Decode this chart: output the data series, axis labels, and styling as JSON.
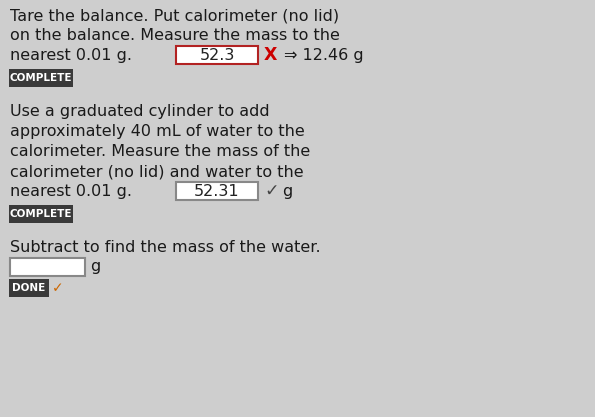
{
  "bg_color": "#cecece",
  "text_color": "#1a1a1a",
  "section1": {
    "line1": "Tare the balance. Put calorimeter (no lid)",
    "line2": "on the balance. Measure the mass to the",
    "line3_prefix": "nearest 0.01 g.",
    "box1_text": "52.3",
    "box1_border_color": "#b22222",
    "x_symbol": "X",
    "x_color": "#cc0000",
    "arrow_text": "⇒ 12.46 g",
    "badge1_text": "COMPLETE",
    "badge1_bg": "#3a3a3a",
    "badge1_fg": "#ffffff"
  },
  "section2": {
    "line1": "Use a graduated cylinder to add",
    "line2": "approximately 40 mL of water to the",
    "line3": "calorimeter. Measure the mass of the",
    "line4": "calorimeter (no lid) and water to the",
    "line5_prefix": "nearest 0.01 g.",
    "box2_text": "52.31",
    "check_text": "✓",
    "check_color": "#444444",
    "suffix": "g",
    "badge2_text": "COMPLETE",
    "badge2_bg": "#3a3a3a",
    "badge2_fg": "#ffffff"
  },
  "section3": {
    "line1": "Subtract to find the mass of the water.",
    "box3_text": "",
    "suffix": "g",
    "badge3_text": "DONE",
    "badge3_bg": "#3a3a3a",
    "badge3_fg": "#ffffff",
    "badge3_check": "✓",
    "badge3_check_color": "#cc6600",
    "badge3_border": "#cc6600"
  },
  "font_size_main": 11.5,
  "font_size_badge": 7.5,
  "font_family": "DejaVu Sans"
}
